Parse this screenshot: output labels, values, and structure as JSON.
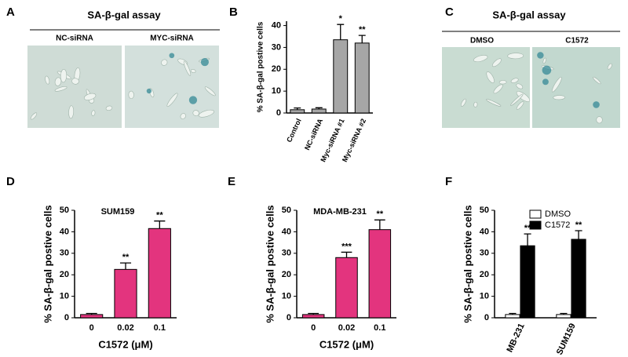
{
  "image_panels": [
    {
      "panel": "A",
      "title": "SA-β-gal assay",
      "captions": [
        "NC-siRNA",
        "MYC-siRNA"
      ]
    },
    {
      "panel": "C",
      "title": "SA-β-gal assay",
      "captions": [
        "DMSO",
        "C1572"
      ]
    }
  ],
  "chart_data": [
    {
      "type": "bar",
      "panel": "B",
      "ylabel": "% SA-β-gal postive cells",
      "categories": [
        "Control",
        "NC-siRNA",
        "Myc-siRNA #1",
        "Myc-siRNA #2"
      ],
      "values": [
        1.5,
        1.8,
        33.5,
        32
      ],
      "errors": [
        0.8,
        0.6,
        7,
        3.5
      ],
      "annotations": [
        null,
        null,
        "*",
        "**"
      ],
      "color": "#a6a6a6",
      "ylim": [
        0,
        42
      ],
      "yticks": [
        0,
        10,
        20,
        30,
        40
      ]
    },
    {
      "type": "bar",
      "panel": "D",
      "title": "SUM159",
      "ylabel": "% SA-β-gal postive cells",
      "xlabel": "C1572 (μM)",
      "categories": [
        "0",
        "0.02",
        "0.1"
      ],
      "values": [
        1.5,
        22.5,
        41.5
      ],
      "errors": [
        0.5,
        3,
        3.5
      ],
      "annotations": [
        null,
        "**",
        "**"
      ],
      "color": "#e3347e",
      "ylim": [
        0,
        50
      ],
      "yticks": [
        0,
        10,
        20,
        30,
        40,
        50
      ]
    },
    {
      "type": "bar",
      "panel": "E",
      "title": "MDA-MB-231",
      "ylabel": "% SA-β-gal postive cells",
      "xlabel": "C1572 (μM)",
      "categories": [
        "0",
        "0.02",
        "0.1"
      ],
      "values": [
        1.5,
        28,
        41
      ],
      "errors": [
        0.5,
        2.5,
        4.5
      ],
      "annotations": [
        null,
        "***",
        "**"
      ],
      "color": "#e3347e",
      "ylim": [
        0,
        50
      ],
      "yticks": [
        0,
        10,
        20,
        30,
        40,
        50
      ]
    },
    {
      "type": "grouped-bar",
      "panel": "F",
      "ylabel": "% SA-β-gal postive cells",
      "categories": [
        "MB-231",
        "SUM159"
      ],
      "series": [
        {
          "name": "DMSO",
          "color": "#ffffff",
          "values": [
            1.5,
            1.5
          ],
          "errors": [
            0.5,
            0.5
          ],
          "annotations": [
            null,
            null
          ]
        },
        {
          "name": "C1572",
          "color": "#000000",
          "values": [
            33.5,
            36.5
          ],
          "errors": [
            5.5,
            4
          ],
          "annotations": [
            "**",
            "**"
          ]
        }
      ],
      "ylim": [
        0,
        50
      ],
      "yticks": [
        0,
        10,
        20,
        30,
        40,
        50
      ]
    }
  ]
}
